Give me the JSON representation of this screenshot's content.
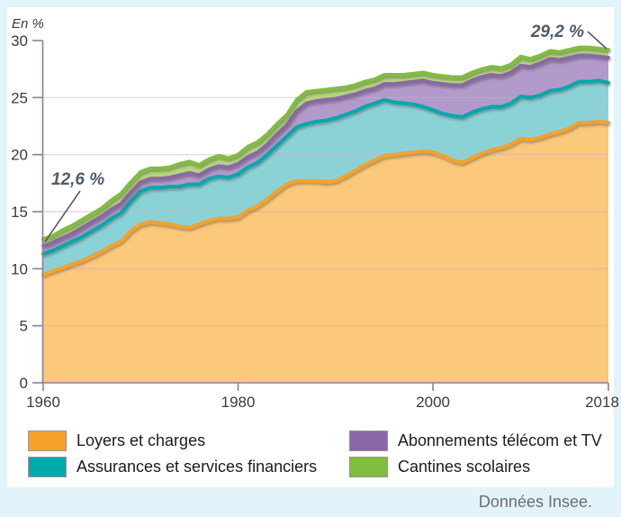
{
  "chart": {
    "unit_label": "En %",
    "annotations": {
      "start": "12,6 %",
      "end": "29,2 %"
    },
    "source_note": "Données Insee.",
    "y_ticks": [
      0,
      5,
      10,
      15,
      20,
      25,
      30
    ],
    "x_ticks": [
      1960,
      1980,
      2000,
      2018
    ],
    "colors": {
      "frame_background": "#E2F3FB",
      "card_background": "#FFFFFF",
      "axis": "#8C8192",
      "grid": "#BFB4BF",
      "tick_label": "#3B3B3B",
      "annotation_text": "#4D5C6C",
      "annotation_line": "#5B5B5B",
      "source_text": "#6E6E6E",
      "legend_text": "#1C1C1C",
      "swatch_border": "#9B9197"
    }
  },
  "chart_data": {
    "type": "area",
    "stacked": true,
    "title": "",
    "xlabel": "",
    "ylabel": "En %",
    "xlim": [
      1960,
      2018
    ],
    "ylim": [
      0,
      30
    ],
    "grid": true,
    "legend_position": "bottom",
    "start_total": 12.6,
    "end_total": 29.2,
    "x": [
      1960,
      1961,
      1962,
      1963,
      1964,
      1965,
      1966,
      1967,
      1968,
      1969,
      1970,
      1971,
      1972,
      1973,
      1974,
      1975,
      1976,
      1977,
      1978,
      1979,
      1980,
      1981,
      1982,
      1983,
      1984,
      1985,
      1986,
      1987,
      1988,
      1989,
      1990,
      1991,
      1992,
      1993,
      1994,
      1995,
      1996,
      1997,
      1998,
      1999,
      2000,
      2001,
      2002,
      2003,
      2004,
      2005,
      2006,
      2007,
      2008,
      2009,
      2010,
      2011,
      2012,
      2013,
      2014,
      2015,
      2016,
      2017,
      2018
    ],
    "series": [
      {
        "name": "Loyers et charges",
        "line_color": "#F4A229",
        "fill_color": "#FCC87A",
        "values": [
          9.5,
          9.8,
          10.1,
          10.4,
          10.7,
          11.1,
          11.5,
          12.0,
          12.4,
          13.3,
          13.9,
          14.1,
          14.0,
          13.9,
          13.7,
          13.6,
          13.9,
          14.2,
          14.4,
          14.4,
          14.5,
          15.1,
          15.5,
          16.1,
          16.8,
          17.4,
          17.7,
          17.7,
          17.7,
          17.6,
          17.7,
          18.1,
          18.6,
          19.1,
          19.5,
          19.9,
          20.0,
          20.1,
          20.2,
          20.3,
          20.2,
          19.9,
          19.5,
          19.3,
          19.7,
          20.1,
          20.4,
          20.6,
          20.9,
          21.4,
          21.3,
          21.5,
          21.8,
          22.0,
          22.3,
          22.8,
          22.8,
          22.9,
          22.8
        ]
      },
      {
        "name": "Assurances et services financiers",
        "line_color": "#00A9AC",
        "fill_color": "#8BD2D6",
        "values": [
          1.8,
          1.8,
          1.9,
          2.0,
          2.1,
          2.2,
          2.3,
          2.4,
          2.5,
          2.6,
          2.9,
          3.0,
          3.1,
          3.3,
          3.5,
          3.8,
          3.5,
          3.7,
          3.7,
          3.6,
          3.8,
          3.8,
          3.8,
          3.9,
          4.0,
          4.2,
          4.7,
          5.0,
          5.2,
          5.4,
          5.5,
          5.4,
          5.2,
          5.1,
          5.0,
          4.9,
          4.6,
          4.4,
          4.2,
          3.9,
          3.7,
          3.7,
          3.9,
          4.0,
          4.0,
          3.9,
          3.8,
          3.6,
          3.6,
          3.7,
          3.7,
          3.7,
          3.8,
          3.7,
          3.7,
          3.6,
          3.6,
          3.6,
          3.5
        ]
      },
      {
        "name": "Abonnements télécom et TV",
        "line_color": "#8A67A8",
        "fill_color": "#B29BCB",
        "values": [
          0.7,
          0.7,
          0.7,
          0.7,
          0.8,
          0.8,
          0.8,
          0.8,
          0.8,
          0.8,
          0.8,
          0.8,
          0.8,
          0.8,
          1.0,
          1.0,
          0.8,
          0.8,
          0.9,
          0.9,
          0.9,
          0.9,
          0.9,
          0.9,
          1.0,
          1.0,
          1.4,
          1.8,
          1.8,
          1.8,
          1.7,
          1.6,
          1.5,
          1.4,
          1.3,
          1.4,
          1.6,
          1.8,
          2.0,
          2.3,
          2.4,
          2.6,
          2.7,
          2.8,
          2.8,
          2.8,
          2.8,
          2.7,
          2.7,
          2.7,
          2.7,
          2.8,
          2.8,
          2.6,
          2.5,
          2.3,
          2.3,
          2.1,
          2.2
        ]
      },
      {
        "name": "Cantines scolaires",
        "line_color": "#80BD41",
        "fill_color": "#B4D77E",
        "values": [
          0.6,
          0.6,
          0.7,
          0.7,
          0.7,
          0.7,
          0.7,
          0.8,
          0.9,
          0.9,
          0.9,
          0.9,
          0.9,
          0.9,
          1.0,
          1.0,
          0.9,
          0.9,
          0.9,
          0.8,
          0.8,
          0.9,
          0.9,
          0.9,
          0.9,
          0.9,
          1.0,
          1.0,
          0.9,
          0.9,
          0.9,
          0.8,
          0.8,
          0.8,
          0.8,
          0.8,
          0.8,
          0.7,
          0.7,
          0.7,
          0.7,
          0.7,
          0.7,
          0.7,
          0.7,
          0.7,
          0.7,
          0.7,
          0.7,
          0.8,
          0.7,
          0.7,
          0.7,
          0.7,
          0.7,
          0.7,
          0.7,
          0.7,
          0.7
        ]
      }
    ]
  }
}
